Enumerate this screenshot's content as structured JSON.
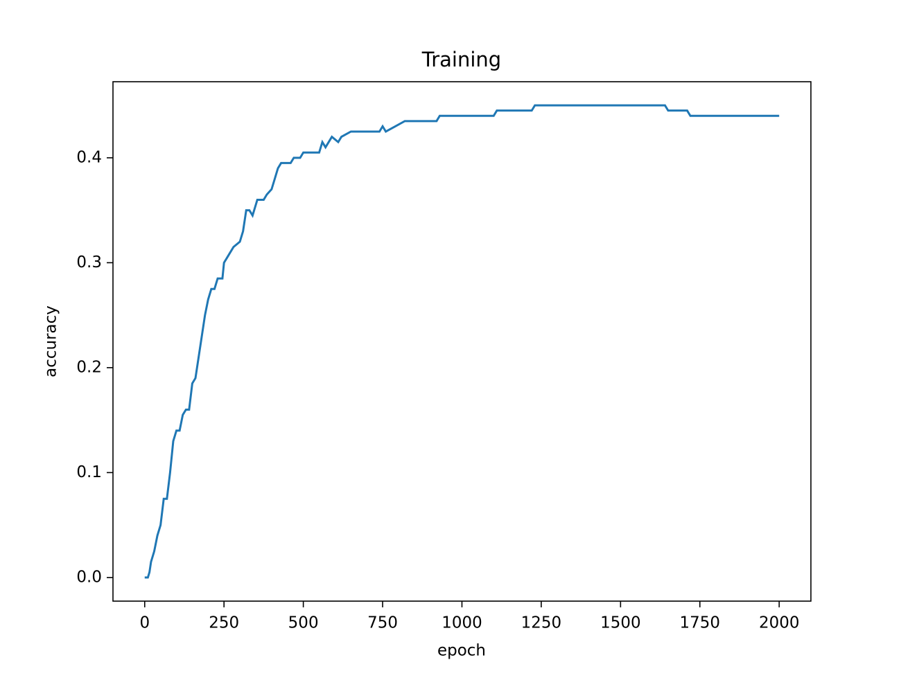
{
  "chart_data": {
    "type": "line",
    "title": "Training",
    "x_label": "epoch",
    "y_label": "accuracy",
    "color": "#1f77b4",
    "x": [
      0,
      10,
      15,
      20,
      30,
      40,
      50,
      60,
      70,
      80,
      90,
      100,
      110,
      120,
      130,
      140,
      150,
      160,
      170,
      180,
      190,
      200,
      210,
      220,
      230,
      245,
      250,
      260,
      270,
      280,
      300,
      310,
      320,
      330,
      340,
      355,
      375,
      385,
      400,
      410,
      420,
      430,
      460,
      470,
      490,
      500,
      550,
      560,
      570,
      590,
      610,
      620,
      650,
      740,
      750,
      760,
      790,
      820,
      920,
      930,
      1100,
      1110,
      1220,
      1230,
      1640,
      1650,
      1710,
      1720,
      2000
    ],
    "values": [
      0,
      0,
      0.005,
      0.015,
      0.025,
      0.04,
      0.05,
      0.075,
      0.075,
      0.1,
      0.13,
      0.14,
      0.14,
      0.155,
      0.16,
      0.16,
      0.185,
      0.19,
      0.21,
      0.23,
      0.25,
      0.265,
      0.275,
      0.275,
      0.285,
      0.285,
      0.3,
      0.305,
      0.31,
      0.315,
      0.32,
      0.33,
      0.35,
      0.35,
      0.345,
      0.36,
      0.36,
      0.365,
      0.37,
      0.38,
      0.39,
      0.395,
      0.395,
      0.4,
      0.4,
      0.405,
      0.405,
      0.415,
      0.41,
      0.42,
      0.415,
      0.42,
      0.425,
      0.425,
      0.43,
      0.425,
      0.43,
      0.435,
      0.435,
      0.44,
      0.44,
      0.445,
      0.445,
      0.45,
      0.45,
      0.445,
      0.445,
      0.44,
      0.44
    ],
    "xlim": [
      -100,
      2100
    ],
    "ylim": [
      -0.0225,
      0.4725
    ],
    "xticks": [
      0,
      250,
      500,
      750,
      1000,
      1250,
      1500,
      1750,
      2000
    ],
    "yticks": [
      {
        "value": 0,
        "label": "0.0"
      },
      0.1,
      0.2,
      0.3,
      0.4
    ]
  }
}
